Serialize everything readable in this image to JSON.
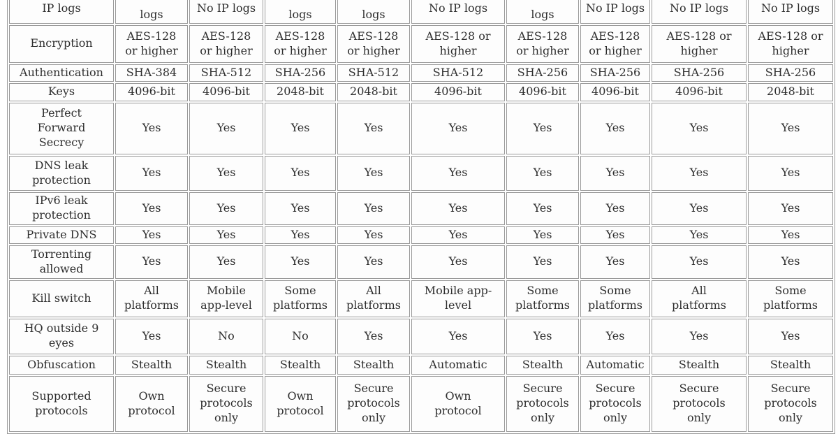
{
  "page": {
    "background_color": "#ffffff",
    "cell_background_color": "#fdfdfd",
    "border_color": "#9a9a9a",
    "text_color": "#2e2e2e"
  },
  "table": {
    "description": "VPN provider feature comparison table (cropped at top and bottom)",
    "columns_count": 9,
    "rows": [
      {
        "label": "IP logs",
        "cells": [
          "logs",
          "No IP logs",
          "logs",
          "logs",
          "No IP logs",
          "logs",
          "No IP logs",
          "No IP logs",
          "No IP logs"
        ]
      },
      {
        "label": "Encryption",
        "cells": [
          "AES-128\nor higher",
          "AES-128\nor higher",
          "AES-128\nor higher",
          "AES-128\nor higher",
          "AES-128 or\nhigher",
          "AES-128\nor higher",
          "AES-128\nor higher",
          "AES-128 or\nhigher",
          "AES-128 or\nhigher"
        ]
      },
      {
        "label": "Authentication",
        "cells": [
          "SHA-384",
          "SHA-512",
          "SHA-256",
          "SHA-512",
          "SHA-512",
          "SHA-256",
          "SHA-256",
          "SHA-256",
          "SHA-256"
        ]
      },
      {
        "label": "Keys",
        "cells": [
          "4096-bit",
          "4096-bit",
          "2048-bit",
          "2048-bit",
          "4096-bit",
          "4096-bit",
          "4096-bit",
          "4096-bit",
          "2048-bit"
        ]
      },
      {
        "label": "Perfect\nForward\nSecrecy",
        "cells": [
          "Yes",
          "Yes",
          "Yes",
          "Yes",
          "Yes",
          "Yes",
          "Yes",
          "Yes",
          "Yes"
        ]
      },
      {
        "label": "DNS leak\nprotection",
        "cells": [
          "Yes",
          "Yes",
          "Yes",
          "Yes",
          "Yes",
          "Yes",
          "Yes",
          "Yes",
          "Yes"
        ]
      },
      {
        "label": "IPv6 leak\nprotection",
        "cells": [
          "Yes",
          "Yes",
          "Yes",
          "Yes",
          "Yes",
          "Yes",
          "Yes",
          "Yes",
          "Yes"
        ]
      },
      {
        "label": "Private DNS",
        "cells": [
          "Yes",
          "Yes",
          "Yes",
          "Yes",
          "Yes",
          "Yes",
          "Yes",
          "Yes",
          "Yes"
        ]
      },
      {
        "label": "Torrenting\nallowed",
        "cells": [
          "Yes",
          "Yes",
          "Yes",
          "Yes",
          "Yes",
          "Yes",
          "Yes",
          "Yes",
          "Yes"
        ]
      },
      {
        "label": "Kill switch",
        "cells": [
          "All\nplatforms",
          "Mobile\napp-level",
          "Some\nplatforms",
          "All\nplatforms",
          "Mobile app-\nlevel",
          "Some\nplatforms",
          "Some\nplatforms",
          "All\nplatforms",
          "Some\nplatforms"
        ]
      },
      {
        "label": "HQ outside 9\neyes",
        "cells": [
          "Yes",
          "No",
          "No",
          "Yes",
          "Yes",
          "Yes",
          "Yes",
          "Yes",
          "Yes"
        ]
      },
      {
        "label": "Obfuscation",
        "cells": [
          "Stealth",
          "Stealth",
          "Stealth",
          "Stealth",
          "Automatic",
          "Stealth",
          "Automatic",
          "Stealth",
          "Stealth"
        ]
      },
      {
        "label": "Supported\nprotocols",
        "cells": [
          "Own\nprotocol",
          "Secure\nprotocols\nonly",
          "Own\nprotocol",
          "Secure\nprotocols\nonly",
          "Own\nprotocol",
          "Secure\nprotocols\nonly",
          "Secure\nprotocols\nonly",
          "Secure\nprotocols\nonly",
          "Secure\nprotocols\nonly"
        ]
      }
    ]
  }
}
